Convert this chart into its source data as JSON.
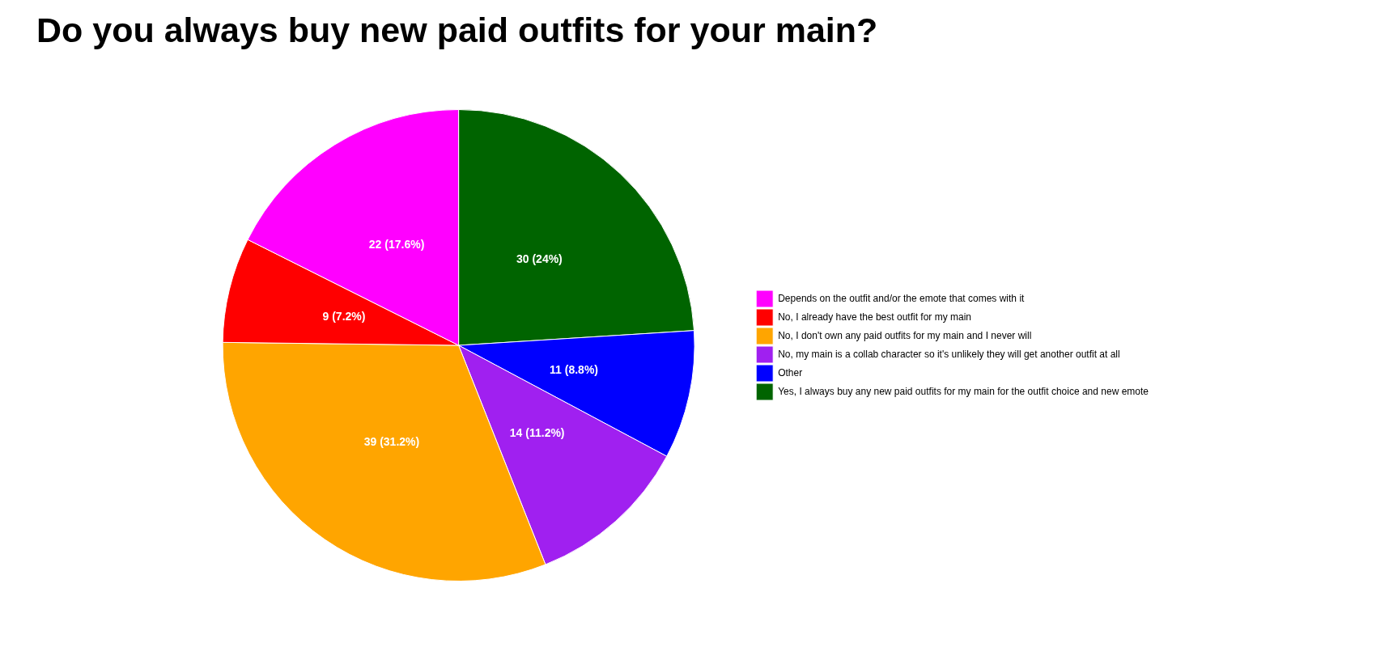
{
  "chart_data": {
    "type": "pie",
    "title": "Do you always buy new paid outfits for your main?",
    "categories": [
      "Depends on the outfit and/or the emote that comes with it",
      "No, I already have the best outfit for my main",
      "No, I don't own any paid outfits for my main and I never will",
      "No, my main is a collab character so it's unlikely they will get another outfit at all",
      "Other",
      "Yes, I always buy any new paid outfits for my main for the outfit choice and new emote"
    ],
    "values": [
      22,
      9,
      39,
      14,
      11,
      30
    ],
    "colors": [
      "#ff00ff",
      "#ff0000",
      "#ffa500",
      "#a020f0",
      "#0000ff",
      "#006400"
    ],
    "value_labels": [
      "22 (17.6%)",
      "9 (7.2%)",
      "39 (31.2%)",
      "14 (11.2%)",
      "11 (8.8%)",
      "30 (24%)"
    ],
    "legend": "right"
  }
}
